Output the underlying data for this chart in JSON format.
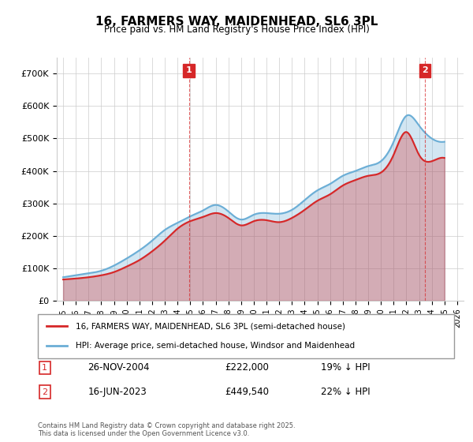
{
  "title": "16, FARMERS WAY, MAIDENHEAD, SL6 3PL",
  "subtitle": "Price paid vs. HM Land Registry's House Price Index (HPI)",
  "legend_line1": "16, FARMERS WAY, MAIDENHEAD, SL6 3PL (semi-detached house)",
  "legend_line2": "HPI: Average price, semi-detached house, Windsor and Maidenhead",
  "annotation1_label": "1",
  "annotation1_date": "26-NOV-2004",
  "annotation1_price": "£222,000",
  "annotation1_hpi": "19% ↓ HPI",
  "annotation2_label": "2",
  "annotation2_date": "16-JUN-2023",
  "annotation2_price": "£449,540",
  "annotation2_hpi": "22% ↓ HPI",
  "footer": "Contains HM Land Registry data © Crown copyright and database right 2025.\nThis data is licensed under the Open Government Licence v3.0.",
  "hpi_color": "#6baed6",
  "price_color": "#d62728",
  "annotation_color": "#d62728",
  "background_color": "#ffffff",
  "grid_color": "#cccccc",
  "ylim": [
    0,
    750000
  ],
  "yticks": [
    0,
    100000,
    200000,
    300000,
    400000,
    500000,
    600000,
    700000
  ],
  "ytick_labels": [
    "£0",
    "£100K",
    "£200K",
    "£300K",
    "£400K",
    "£500K",
    "£600K",
    "£700K"
  ],
  "sale1_x": 2004.9,
  "sale1_y": 222000,
  "sale2_x": 2023.46,
  "sale2_y": 449540,
  "xmin": 1994.5,
  "xmax": 2026.5,
  "xticks": [
    1995,
    1996,
    1997,
    1998,
    1999,
    2000,
    2001,
    2002,
    2003,
    2004,
    2005,
    2006,
    2007,
    2008,
    2009,
    2010,
    2011,
    2012,
    2013,
    2014,
    2015,
    2016,
    2017,
    2018,
    2019,
    2020,
    2021,
    2022,
    2023,
    2024,
    2025,
    2026
  ],
  "hpi_years": [
    1995,
    1996,
    1997,
    1998,
    1999,
    2000,
    2001,
    2002,
    2003,
    2004,
    2005,
    2006,
    2007,
    2008,
    2009,
    2010,
    2011,
    2012,
    2013,
    2014,
    2015,
    2016,
    2017,
    2018,
    2019,
    2020,
    2021,
    2022,
    2023,
    2024,
    2025
  ],
  "hpi_values": [
    72000,
    78000,
    84000,
    92000,
    108000,
    130000,
    155000,
    185000,
    218000,
    240000,
    260000,
    278000,
    295000,
    275000,
    250000,
    265000,
    270000,
    268000,
    280000,
    310000,
    340000,
    360000,
    385000,
    400000,
    415000,
    430000,
    490000,
    570000,
    540000,
    500000,
    490000
  ],
  "price_years": [
    1995,
    1996,
    1997,
    1998,
    1999,
    2000,
    2001,
    2002,
    2003,
    2004,
    2005,
    2006,
    2007,
    2008,
    2009,
    2010,
    2011,
    2012,
    2013,
    2014,
    2015,
    2016,
    2017,
    2018,
    2019,
    2020,
    2021,
    2022,
    2023,
    2024,
    2025
  ],
  "price_values": [
    65000,
    68000,
    72000,
    78000,
    88000,
    105000,
    125000,
    152000,
    185000,
    222000,
    245000,
    258000,
    270000,
    255000,
    232000,
    245000,
    248000,
    242000,
    255000,
    280000,
    308000,
    328000,
    355000,
    372000,
    385000,
    395000,
    450000,
    520000,
    449540,
    430000,
    440000
  ]
}
